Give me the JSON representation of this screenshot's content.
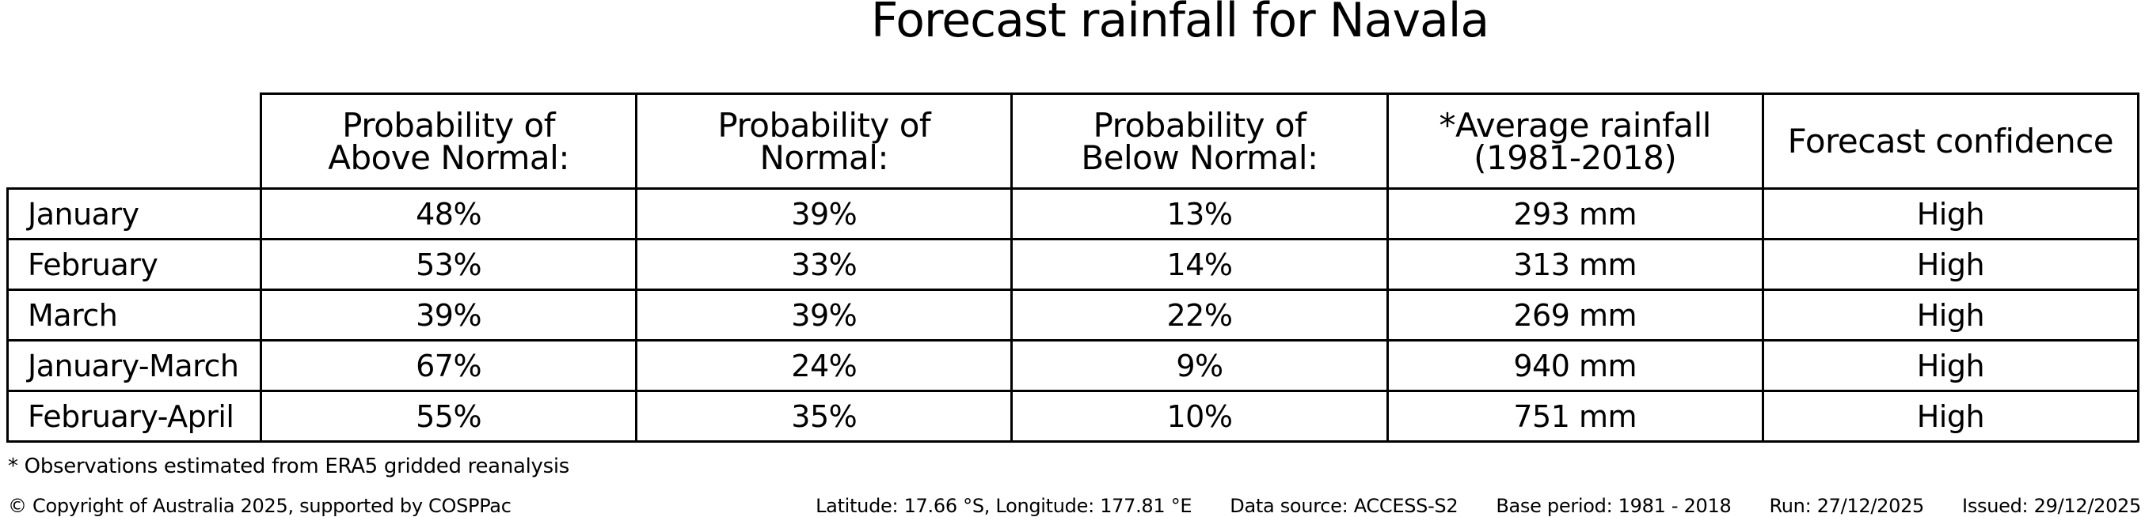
{
  "title": "Forecast rainfall for Navala",
  "chart_data": {
    "type": "table",
    "title": "Forecast rainfall for Navala",
    "column_headers": [
      "Probability of\nAbove Normal:",
      "Probability of\nNormal:",
      "Probability of\nBelow Normal:",
      "*Average rainfall\n(1981-2018)",
      "Forecast confidence"
    ],
    "row_labels": [
      "January",
      "February",
      "March",
      "January-March",
      "February-April"
    ],
    "rows": [
      [
        "48%",
        "39%",
        "13%",
        "293 mm",
        "High"
      ],
      [
        "53%",
        "33%",
        "14%",
        "313 mm",
        "High"
      ],
      [
        "39%",
        "39%",
        "22%",
        "269 mm",
        "High"
      ],
      [
        "67%",
        "24%",
        "9%",
        "940 mm",
        "High"
      ],
      [
        "55%",
        "35%",
        "10%",
        "751 mm",
        "High"
      ]
    ],
    "layout_hints": {
      "grid": "all-cell-borders",
      "header_rows": 1,
      "first_column_header": ""
    }
  },
  "footnote": "* Observations estimated from ERA5 gridded reanalysis",
  "footer": {
    "copyright": "© Copyright of Australia 2025, supported by COSPPac",
    "location": "Latitude: 17.66 °S, Longitude: 177.81 °E",
    "data_source": "Data source: ACCESS-S2",
    "base_period": "Base period: 1981 - 2018",
    "run": "Run: 27/12/2025",
    "issued": "Issued: 29/12/2025"
  },
  "colors": {
    "background": "#ffffff",
    "text": "#000000",
    "border": "#000000"
  }
}
